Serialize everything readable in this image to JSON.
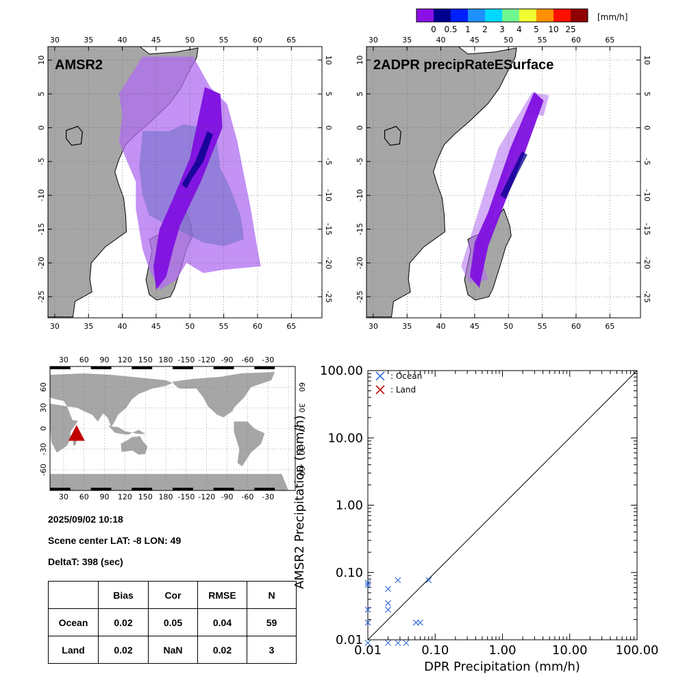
{
  "colorbar": {
    "unit": "[mm/h]",
    "labels": [
      "0",
      "0.5",
      "1",
      "2",
      "3",
      "4",
      "5",
      "10",
      "25"
    ],
    "colors": [
      "#8b10e8",
      "#000090",
      "#0020ff",
      "#1e90ff",
      "#00d8ff",
      "#70f890",
      "#f0ff30",
      "#ff9000",
      "#ff1000",
      "#900000"
    ]
  },
  "maps": {
    "amsr2": {
      "title": "AMSR2"
    },
    "dpr": {
      "title": "2ADPR precipRateESurface"
    },
    "lon_ticks": [
      "30",
      "35",
      "40",
      "45",
      "50",
      "55",
      "60",
      "65"
    ],
    "lat_ticks": [
      "10",
      "5",
      "0",
      "-5",
      "-10",
      "-15",
      "-20",
      "-25"
    ],
    "land_color": "#a6a6a6"
  },
  "world_map": {
    "lon_ticks": [
      "30",
      "60",
      "90",
      "120",
      "150",
      "180",
      "-150",
      "-120",
      "-90",
      "-60",
      "-30"
    ],
    "lat_ticks": [
      "60",
      "30",
      "0",
      "-30",
      "-60"
    ],
    "marker_color": "#c00000"
  },
  "info": {
    "datetime": "2025/09/02 10:18",
    "scene_center": "Scene center LAT: -8   LON:  49",
    "delta_t": "DeltaT:  398 (sec)"
  },
  "stats_table": {
    "headers": [
      "",
      "Bias",
      "Cor",
      "RMSE",
      "N"
    ],
    "rows": [
      [
        "Ocean",
        "0.02",
        "0.05",
        "0.04",
        "59"
      ],
      [
        "Land",
        "0.02",
        "NaN",
        "0.02",
        "3"
      ]
    ]
  },
  "chart_data": {
    "type": "scatter",
    "xlabel": "DPR Precipitation (mm/h)",
    "ylabel": "AMSR2 Precipitation (mm/h)",
    "xscale": "log",
    "yscale": "log",
    "xlim": [
      0.01,
      100
    ],
    "ylim": [
      0.01,
      100
    ],
    "x_tick_labels": [
      "0.01",
      "0.10",
      "1.00",
      "10.00",
      "100.00"
    ],
    "y_tick_labels": [
      "0.01",
      "0.10",
      "1.00",
      "10.00",
      "100.00"
    ],
    "grid": false,
    "legend_position": "top-left",
    "reference_line": "1:1",
    "series": [
      {
        "name": ": Ocean",
        "color": "#3a6fd8",
        "points": [
          [
            0.01,
            0.07
          ],
          [
            0.01,
            0.065
          ],
          [
            0.01,
            0.028
          ],
          [
            0.01,
            0.018
          ],
          [
            0.01,
            0.009
          ],
          [
            0.02,
            0.057
          ],
          [
            0.02,
            0.035
          ],
          [
            0.02,
            0.028
          ],
          [
            0.02,
            0.009
          ],
          [
            0.028,
            0.077
          ],
          [
            0.028,
            0.009
          ],
          [
            0.037,
            0.009
          ],
          [
            0.052,
            0.018
          ],
          [
            0.06,
            0.018
          ],
          [
            0.08,
            0.077
          ]
        ]
      },
      {
        "name": ": Land",
        "color": "#c01010",
        "points": []
      }
    ]
  }
}
